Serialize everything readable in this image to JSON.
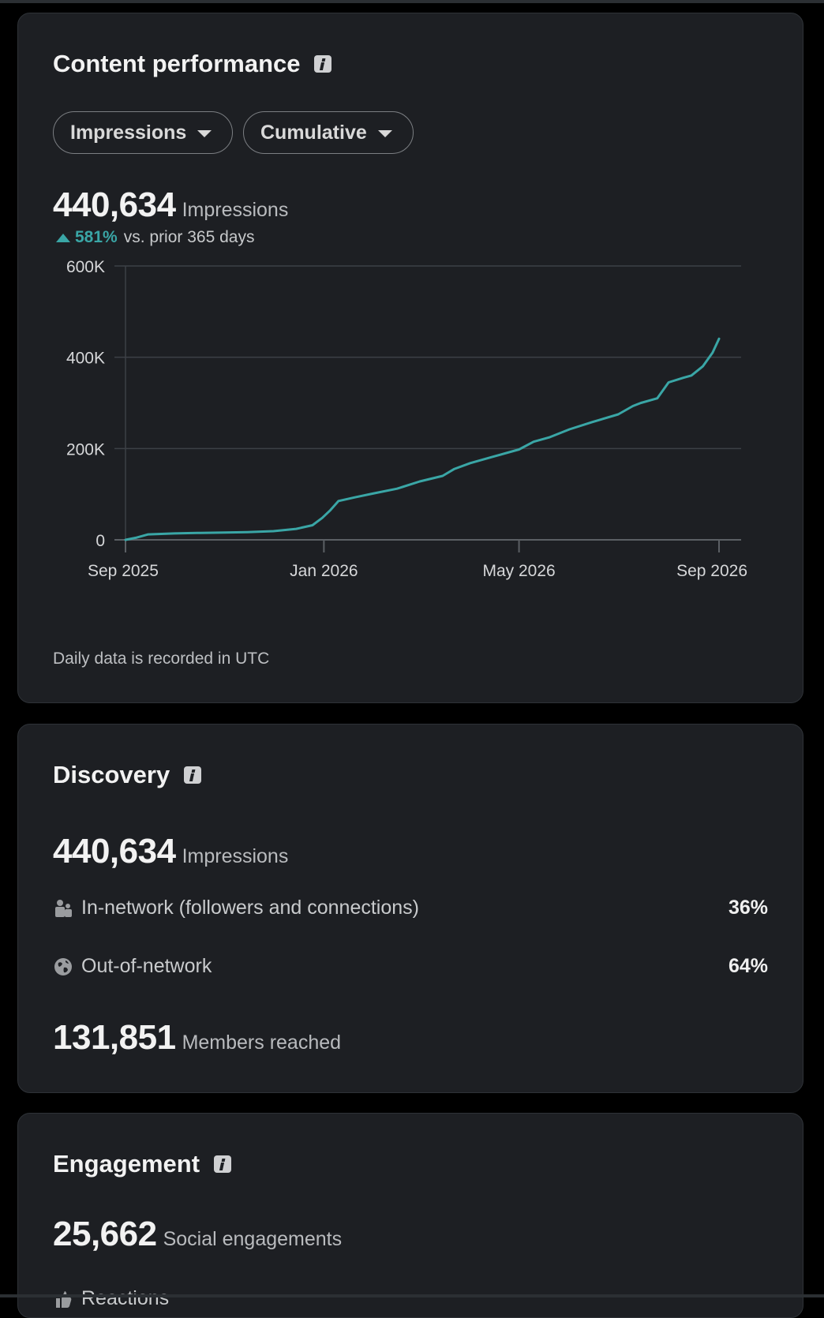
{
  "content_performance": {
    "title": "Content performance",
    "metric_dropdown": "Impressions",
    "mode_dropdown": "Cumulative",
    "total_value": "440,634",
    "total_label": "Impressions",
    "delta_value": "581%",
    "delta_text": "vs. prior 365 days",
    "footnote": "Daily data is recorded in UTC"
  },
  "chart_data": {
    "type": "line",
    "ytick_labels": [
      "0",
      "200K",
      "400K",
      "600K"
    ],
    "yticks": [
      0,
      200000,
      400000,
      600000
    ],
    "ylim": [
      0,
      600000
    ],
    "xtick_labels": [
      "Sep 2025",
      "Jan 2026",
      "May 2026",
      "Sep 2026"
    ],
    "xlim": [
      "2025-09-01",
      "2026-09-01"
    ],
    "grid": true,
    "color": "#3aa6a6",
    "series": [
      {
        "x": [
          "2025-09-01",
          "2025-09-08",
          "2025-09-15",
          "2025-10-01",
          "2025-10-15",
          "2025-11-01",
          "2025-11-15",
          "2025-12-01",
          "2025-12-15",
          "2025-12-25",
          "2025-12-31",
          "2026-01-05",
          "2026-01-10",
          "2026-01-20",
          "2026-02-01",
          "2026-02-15",
          "2026-03-01",
          "2026-03-15",
          "2026-03-22",
          "2026-04-01",
          "2026-04-15",
          "2026-05-01",
          "2026-05-10",
          "2026-05-20",
          "2026-06-01",
          "2026-06-15",
          "2026-07-01",
          "2026-07-10",
          "2026-07-15",
          "2026-07-25",
          "2026-08-01",
          "2026-08-10",
          "2026-08-15",
          "2026-08-22",
          "2026-08-28",
          "2026-09-01"
        ],
        "y": [
          0,
          5000,
          12000,
          14000,
          15000,
          16000,
          17000,
          19000,
          24000,
          32000,
          48000,
          65000,
          85000,
          93000,
          102000,
          112000,
          128000,
          140000,
          155000,
          168000,
          182000,
          198000,
          215000,
          225000,
          242000,
          258000,
          275000,
          293000,
          300000,
          310000,
          345000,
          355000,
          360000,
          380000,
          410000,
          440634
        ]
      }
    ]
  },
  "discovery": {
    "title": "Discovery",
    "total_value": "440,634",
    "total_label": "Impressions",
    "in_network_label": "In-network (followers and connections)",
    "in_network_pct": "36%",
    "out_network_label": "Out-of-network",
    "out_network_pct": "64%",
    "members_value": "131,851",
    "members_label": "Members reached"
  },
  "engagement": {
    "title": "Engagement",
    "total_value": "25,662",
    "total_label": "Social engagements",
    "first_row_label": "Reactions"
  }
}
